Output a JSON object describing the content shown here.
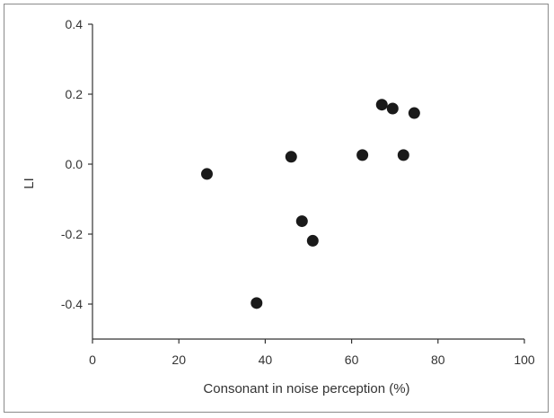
{
  "chart_data": {
    "type": "scatter",
    "title": "",
    "xlabel": "Consonant in noise perception (%)",
    "ylabel": "LI",
    "xlim": [
      0,
      100
    ],
    "ylim": [
      -0.5,
      0.4
    ],
    "x_ticks": [
      0,
      20,
      40,
      60,
      80,
      100
    ],
    "x_tick_labels": [
      "0",
      "20",
      "40",
      "60",
      "80",
      "100"
    ],
    "y_ticks": [
      0.4,
      0.2,
      0.0,
      -0.2,
      -0.4
    ],
    "y_tick_labels": [
      "0.4",
      "0.2",
      "0.0",
      "-0.2",
      "-0.4"
    ],
    "grid": false,
    "legend": "none",
    "marker_color": "#1a1a1a",
    "axis_color": "#333333",
    "points": [
      {
        "x": 26.5,
        "y": -0.028
      },
      {
        "x": 38.0,
        "y": -0.397
      },
      {
        "x": 46.0,
        "y": 0.021
      },
      {
        "x": 48.5,
        "y": -0.163
      },
      {
        "x": 51.0,
        "y": -0.219
      },
      {
        "x": 62.5,
        "y": 0.026
      },
      {
        "x": 67.0,
        "y": 0.17
      },
      {
        "x": 69.5,
        "y": 0.159
      },
      {
        "x": 72.0,
        "y": 0.026
      },
      {
        "x": 74.5,
        "y": 0.146
      }
    ]
  }
}
